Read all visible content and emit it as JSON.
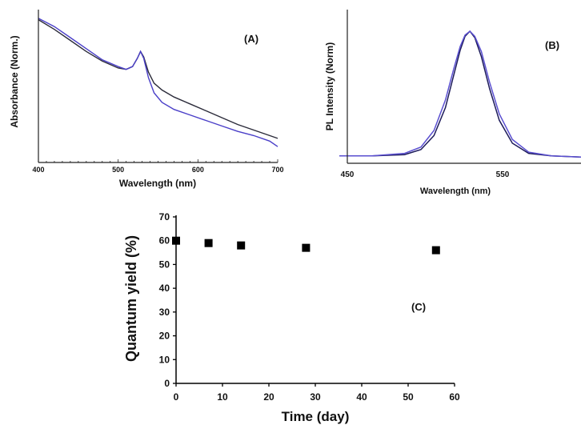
{
  "chart_data": [
    {
      "type": "line",
      "panel": "(A)",
      "xlabel": "Wavelength (nm)",
      "ylabel": "Absorbance (Norm.)",
      "xlim": [
        400,
        700
      ],
      "x_ticks": [
        "400",
        "500",
        "600",
        "700"
      ],
      "y_ticks_labeled": false,
      "grid": false,
      "series": [
        {
          "color": "#2b2b3a",
          "x": [
            400,
            420,
            440,
            460,
            480,
            500,
            510,
            518,
            524,
            528,
            532,
            538,
            545,
            555,
            570,
            590,
            610,
            630,
            650,
            670,
            690,
            700
          ],
          "y": [
            1.0,
            0.93,
            0.85,
            0.77,
            0.7,
            0.65,
            0.64,
            0.66,
            0.72,
            0.77,
            0.73,
            0.62,
            0.54,
            0.49,
            0.44,
            0.39,
            0.34,
            0.29,
            0.24,
            0.2,
            0.16,
            0.14
          ]
        },
        {
          "color": "#4a3fc8",
          "x": [
            400,
            420,
            440,
            460,
            480,
            500,
            510,
            518,
            524,
            528,
            532,
            538,
            545,
            555,
            570,
            590,
            610,
            630,
            650,
            670,
            690,
            700
          ],
          "y": [
            1.01,
            0.95,
            0.87,
            0.79,
            0.71,
            0.66,
            0.64,
            0.66,
            0.72,
            0.77,
            0.72,
            0.58,
            0.47,
            0.4,
            0.35,
            0.31,
            0.27,
            0.23,
            0.19,
            0.16,
            0.12,
            0.08
          ]
        }
      ]
    },
    {
      "type": "line",
      "panel": "(B)",
      "xlabel": "Wavelength (nm)",
      "ylabel": "PL Intensity (Norm)",
      "xlim": [
        450,
        600
      ],
      "x_ticks": [
        "450",
        "550"
      ],
      "y_ticks_labeled": false,
      "grid": false,
      "series": [
        {
          "color": "#1c1a5a",
          "x": [
            450,
            470,
            490,
            500,
            508,
            515,
            520,
            524,
            527,
            530,
            533,
            537,
            542,
            548,
            556,
            566,
            580,
            600
          ],
          "y": [
            0.02,
            0.02,
            0.03,
            0.07,
            0.18,
            0.4,
            0.65,
            0.85,
            0.96,
            1.0,
            0.95,
            0.8,
            0.55,
            0.3,
            0.12,
            0.04,
            0.02,
            0.01
          ]
        },
        {
          "color": "#5a4fd0",
          "x": [
            450,
            470,
            490,
            500,
            508,
            515,
            520,
            524,
            527,
            530,
            533,
            537,
            542,
            548,
            556,
            566,
            580,
            600
          ],
          "y": [
            0.02,
            0.02,
            0.04,
            0.09,
            0.22,
            0.46,
            0.7,
            0.88,
            0.97,
            1.0,
            0.96,
            0.84,
            0.6,
            0.35,
            0.15,
            0.05,
            0.02,
            0.01
          ]
        }
      ]
    },
    {
      "type": "scatter",
      "panel": "(C)",
      "xlabel": "Time (day)",
      "ylabel": "Quantum yield (%)",
      "xlim": [
        0,
        60
      ],
      "ylim": [
        0,
        70
      ],
      "x_ticks": [
        "0",
        "10",
        "20",
        "30",
        "40",
        "50",
        "60"
      ],
      "y_ticks": [
        "0",
        "10",
        "20",
        "30",
        "40",
        "50",
        "60",
        "70"
      ],
      "grid": false,
      "series": [
        {
          "marker": "square",
          "color": "#000000",
          "x": [
            0,
            7,
            14,
            28,
            56
          ],
          "y": [
            60,
            59,
            58,
            57,
            56
          ]
        }
      ]
    }
  ]
}
